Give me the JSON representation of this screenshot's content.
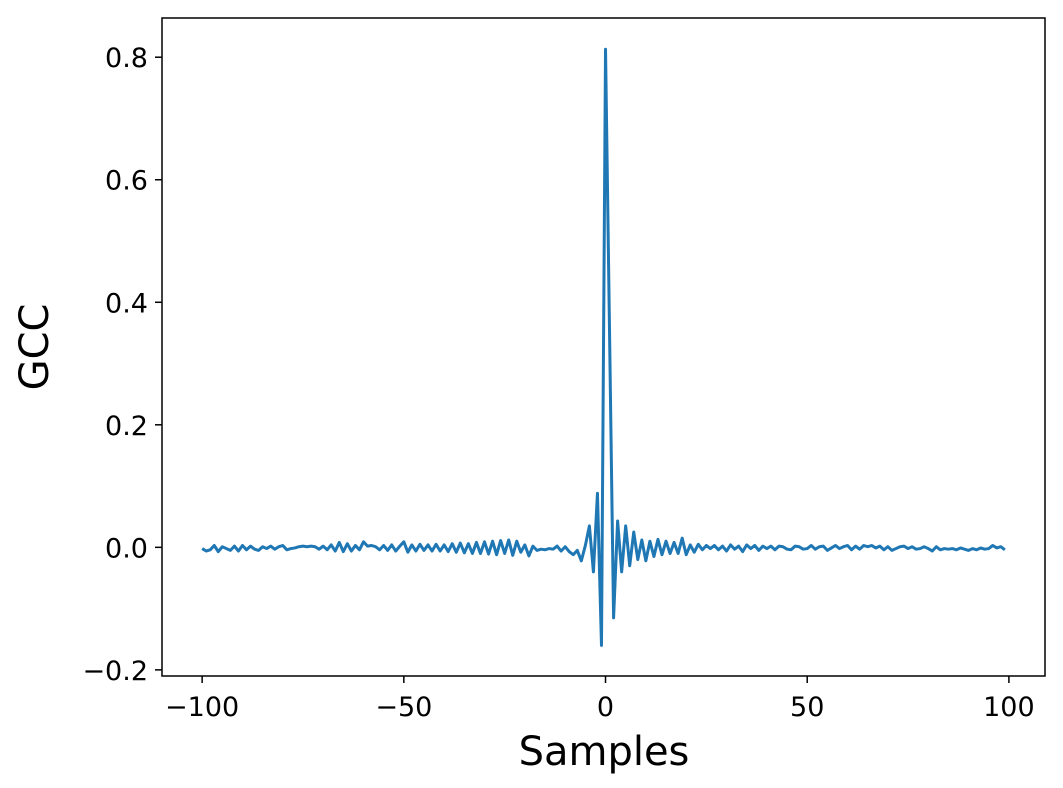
{
  "chart_data": {
    "type": "line",
    "xlabel": "Samples",
    "ylabel": "GCC",
    "x": [
      -100,
      -99,
      -98,
      -97,
      -96,
      -95,
      -94,
      -93,
      -92,
      -91,
      -90,
      -89,
      -88,
      -87,
      -86,
      -85,
      -84,
      -83,
      -82,
      -81,
      -80,
      -79,
      -78,
      -77,
      -76,
      -75,
      -74,
      -73,
      -72,
      -71,
      -70,
      -69,
      -68,
      -67,
      -66,
      -65,
      -64,
      -63,
      -62,
      -61,
      -60,
      -59,
      -58,
      -57,
      -56,
      -55,
      -54,
      -53,
      -52,
      -51,
      -50,
      -49,
      -48,
      -47,
      -46,
      -45,
      -44,
      -43,
      -42,
      -41,
      -40,
      -39,
      -38,
      -37,
      -36,
      -35,
      -34,
      -33,
      -32,
      -31,
      -30,
      -29,
      -28,
      -27,
      -26,
      -25,
      -24,
      -23,
      -22,
      -21,
      -20,
      -19,
      -18,
      -17,
      -16,
      -15,
      -14,
      -13,
      -12,
      -11,
      -10,
      -9,
      -8,
      -7,
      -6,
      -5,
      -4,
      -3,
      -2,
      -1,
      0,
      1,
      2,
      3,
      4,
      5,
      6,
      7,
      8,
      9,
      10,
      11,
      12,
      13,
      14,
      15,
      16,
      17,
      18,
      19,
      20,
      21,
      22,
      23,
      24,
      25,
      26,
      27,
      28,
      29,
      30,
      31,
      32,
      33,
      34,
      35,
      36,
      37,
      38,
      39,
      40,
      41,
      42,
      43,
      44,
      45,
      46,
      47,
      48,
      49,
      50,
      51,
      52,
      53,
      54,
      55,
      56,
      57,
      58,
      59,
      60,
      61,
      62,
      63,
      64,
      65,
      66,
      67,
      68,
      69,
      70,
      71,
      72,
      73,
      74,
      75,
      76,
      77,
      78,
      79,
      80,
      81,
      82,
      83,
      84,
      85,
      86,
      87,
      88,
      89,
      90,
      91,
      92,
      93,
      94,
      95,
      96,
      97,
      98,
      99
    ],
    "series": [
      {
        "color": "#1f77b4",
        "values": [
          -0.002,
          -0.006,
          -0.004,
          0.003,
          -0.007,
          0.001,
          -0.002,
          -0.005,
          0.002,
          -0.006,
          0.003,
          -0.004,
          0.002,
          -0.003,
          -0.005,
          0.001,
          -0.002,
          0.002,
          -0.003,
          0.001,
          0.003,
          -0.004,
          -0.002,
          -0.001,
          0.001,
          0.002,
          0.001,
          0.002,
          0.001,
          -0.003,
          0.002,
          -0.004,
          0.004,
          -0.006,
          0.008,
          -0.007,
          0.006,
          -0.006,
          0.003,
          -0.004,
          0.009,
          0.002,
          0.003,
          0.001,
          -0.004,
          0.003,
          -0.005,
          0.004,
          -0.006,
          0.002,
          0.009,
          -0.008,
          0.004,
          -0.006,
          0.005,
          -0.005,
          0.004,
          -0.006,
          0.005,
          -0.006,
          0.004,
          -0.007,
          0.006,
          -0.008,
          0.007,
          -0.009,
          0.006,
          -0.01,
          0.008,
          -0.01,
          0.009,
          -0.011,
          0.01,
          -0.012,
          0.011,
          -0.01,
          0.012,
          -0.013,
          0.01,
          -0.008,
          0.004,
          -0.014,
          0.002,
          -0.005,
          -0.003,
          -0.004,
          -0.002,
          -0.003,
          0.002,
          -0.006,
          0.001,
          -0.007,
          -0.012,
          -0.005,
          -0.022,
          0.003,
          0.035,
          -0.04,
          0.088,
          -0.16,
          0.813,
          0.35,
          -0.115,
          0.043,
          -0.04,
          0.035,
          -0.03,
          0.025,
          -0.02,
          0.012,
          -0.022,
          0.01,
          -0.015,
          0.013,
          -0.012,
          0.01,
          -0.01,
          0.008,
          -0.01,
          0.015,
          -0.012,
          0.004,
          -0.008,
          0.005,
          -0.004,
          0.003,
          -0.002,
          0.003,
          -0.004,
          0.002,
          -0.006,
          0.004,
          -0.003,
          0.002,
          -0.007,
          0.004,
          -0.002,
          0.003,
          -0.005,
          0.002,
          -0.002,
          0.002,
          -0.004,
          0.002,
          0.001,
          -0.003,
          -0.004,
          0.002,
          0.001,
          -0.003,
          -0.002,
          0.003,
          -0.003,
          0.001,
          0.002,
          -0.005,
          -0.001,
          0.003,
          -0.002,
          0.001,
          0.003,
          -0.004,
          0.002,
          -0.003,
          0.003,
          0.001,
          0.003,
          -0.001,
          0.002,
          -0.004,
          0.001,
          -0.005,
          -0.002,
          0.001,
          0.002,
          -0.002,
          0.001,
          -0.003,
          -0.002,
          0.001,
          -0.002,
          -0.006,
          0.001,
          -0.004,
          -0.002,
          -0.003,
          -0.002,
          -0.004,
          -0.001,
          -0.003,
          -0.005,
          -0.002,
          -0.004,
          -0.001,
          -0.003,
          -0.002,
          0.003,
          -0.001,
          0.001,
          -0.004
        ]
      }
    ],
    "xlim": [
      -109.95,
      108.95
    ],
    "xticks": [
      {
        "value": -100,
        "label": "−100"
      },
      {
        "value": -50,
        "label": "−50"
      },
      0,
      50,
      100
    ],
    "ylim": [
      -0.21,
      0.864
    ],
    "yticks": [
      {
        "value": -0.2,
        "label": "−0.2"
      },
      {
        "value": 0,
        "label": "0.0"
      },
      0.2,
      0.4,
      0.6,
      0.8
    ],
    "grid": false
  }
}
